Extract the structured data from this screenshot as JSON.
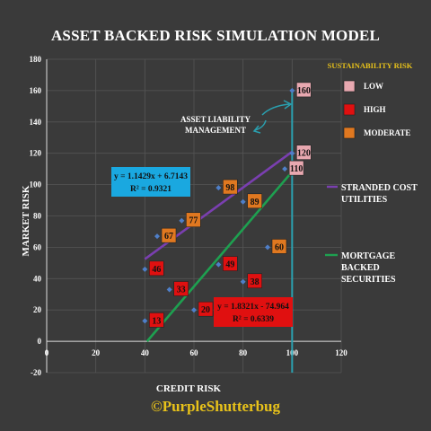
{
  "credit_text": "©PurpleShutterbug",
  "chart_data": {
    "type": "scatter",
    "title": "ASSET BACKED RISK SIMULATION MODEL",
    "xlabel": "CREDIT RISK",
    "ylabel": "MARKET RISK",
    "xlim": [
      0,
      120
    ],
    "ylim": [
      -20,
      180
    ],
    "x_ticks": [
      0,
      20,
      40,
      60,
      80,
      100,
      120
    ],
    "y_ticks": [
      -20,
      0,
      20,
      40,
      60,
      80,
      100,
      120,
      140,
      160,
      180
    ],
    "legend_title": "SUSTAINABILITY RISK",
    "series": [
      {
        "name": "LOW",
        "color": "#e8a8b0",
        "points": [
          {
            "x": 97,
            "y": 110,
            "label": "110"
          },
          {
            "x": 100,
            "y": 120,
            "label": "120"
          },
          {
            "x": 100,
            "y": 160,
            "label": "160"
          }
        ]
      },
      {
        "name": "HIGH",
        "color": "#e01010",
        "points": [
          {
            "x": 40,
            "y": 13,
            "label": "13"
          },
          {
            "x": 50,
            "y": 33,
            "label": "33"
          },
          {
            "x": 60,
            "y": 20,
            "label": "20"
          },
          {
            "x": 40,
            "y": 46,
            "label": "46"
          },
          {
            "x": 70,
            "y": 49,
            "label": "49"
          },
          {
            "x": 80,
            "y": 38,
            "label": "38"
          }
        ]
      },
      {
        "name": "MODERATE",
        "color": "#e07820",
        "points": [
          {
            "x": 45,
            "y": 67,
            "label": "67"
          },
          {
            "x": 55,
            "y": 77,
            "label": "77"
          },
          {
            "x": 70,
            "y": 98,
            "label": "98"
          },
          {
            "x": 80,
            "y": 89,
            "label": "89"
          },
          {
            "x": 90,
            "y": 60,
            "label": "60"
          }
        ]
      }
    ],
    "trendlines": [
      {
        "name": "STRANDED COST UTILITIES",
        "color": "#7a3fb0",
        "equation": "y = 1.1429x + 6.7143",
        "r2": "R² = 0.9321",
        "slope": 1.1429,
        "intercept": 6.7143,
        "x_range": [
          40,
          100
        ]
      },
      {
        "name": "MORTGAGE BACKED SECURITIES",
        "color": "#1ea050",
        "equation": "y = 1.8321x - 74.964",
        "r2": "R² = 0.6339",
        "slope": 1.8321,
        "intercept": -74.964,
        "x_range": [
          40,
          100
        ]
      }
    ],
    "reference_line": {
      "x": 100,
      "color": "#2aa0b0"
    },
    "annotation": "ASSET LIABILITY MANAGEMENT",
    "grid": true
  }
}
